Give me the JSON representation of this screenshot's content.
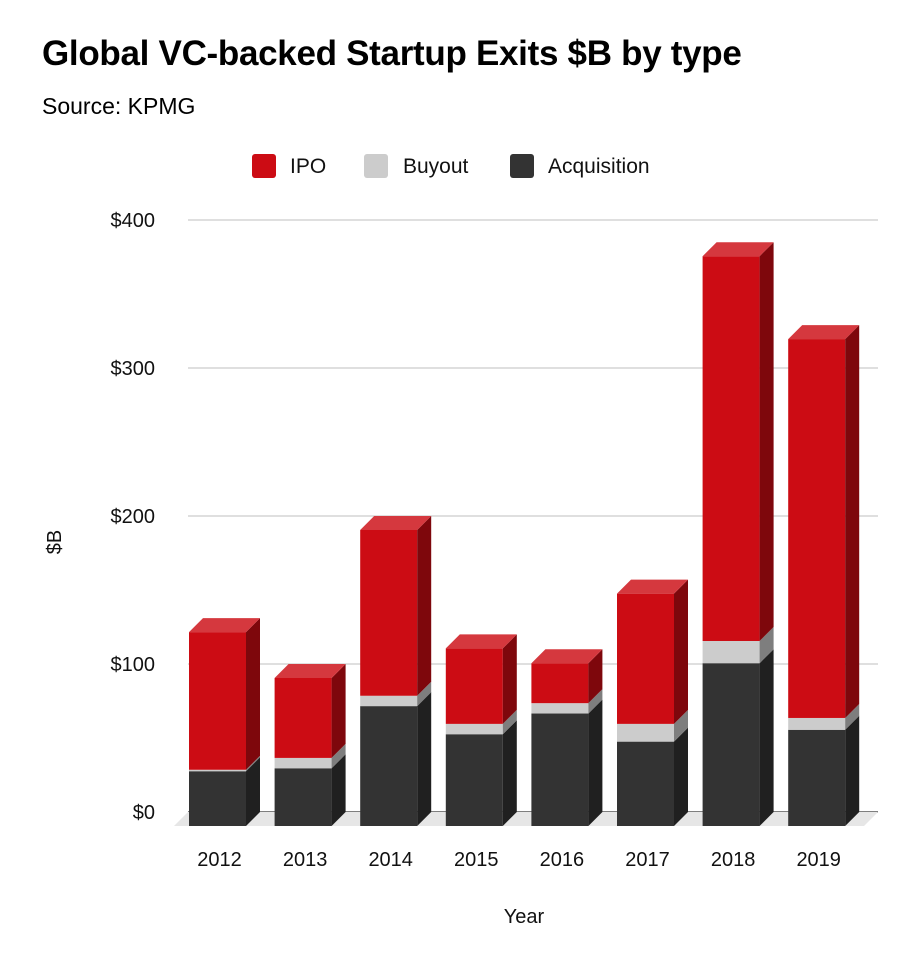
{
  "header": {
    "title": "Global VC-backed Startup Exits $B by type",
    "subtitle": "Source: KPMG"
  },
  "chart_data": {
    "type": "bar",
    "stacked": true,
    "three_d": true,
    "categories": [
      "2012",
      "2013",
      "2014",
      "2015",
      "2016",
      "2017",
      "2018",
      "2019"
    ],
    "series": [
      {
        "name": "Acquisition",
        "color": "#333333",
        "values": [
          37,
          39,
          81,
          62,
          76,
          57,
          110,
          65
        ]
      },
      {
        "name": "Buyout",
        "color": "#cccccc",
        "values": [
          1,
          7,
          7,
          7,
          7,
          12,
          15,
          8
        ]
      },
      {
        "name": "IPO",
        "color": "#cc0c14",
        "values": [
          93,
          54,
          112,
          51,
          27,
          88,
          260,
          256
        ]
      }
    ],
    "legend_order": [
      "IPO",
      "Buyout",
      "Acquisition"
    ],
    "legend_position": "top",
    "xlabel": "Year",
    "ylabel": "$B",
    "ylim": [
      0,
      400
    ],
    "yticks": [
      "$0",
      "$100",
      "$200",
      "$300",
      "$400"
    ],
    "grid": true
  }
}
